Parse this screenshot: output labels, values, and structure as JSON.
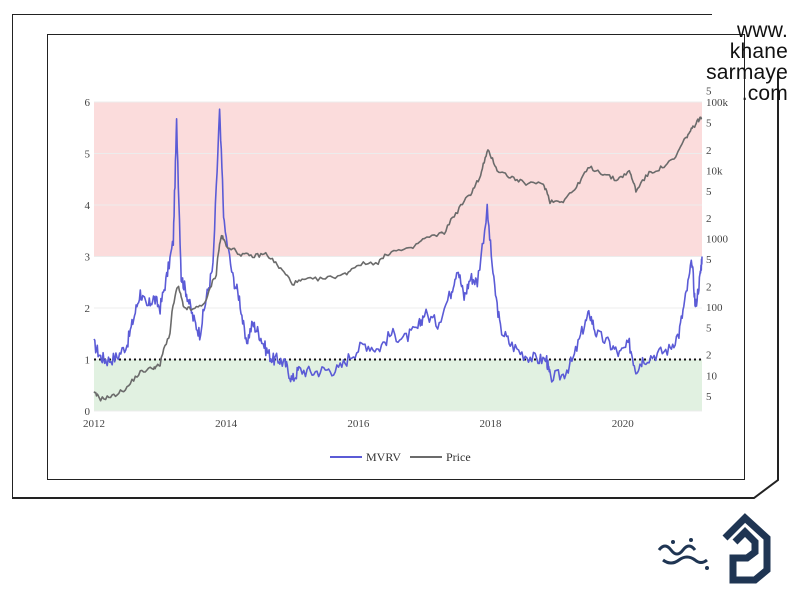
{
  "watermark": {
    "lines": [
      "www.",
      "khane",
      "sarmaye",
      ".com"
    ]
  },
  "colors": {
    "mvrv": "#5b5bd6",
    "price": "#6b6b6b",
    "red_band": "#fbdcdc",
    "green_band": "#e1f1e1",
    "frame": "#222222"
  },
  "chart_data": {
    "type": "line",
    "xlabel": "",
    "ylabel": "",
    "x_ticks": [
      "2012",
      "2014",
      "2016",
      "2018",
      "2020"
    ],
    "y_left_ticks": [
      "0",
      "1",
      "2",
      "3",
      "4",
      "5",
      "6"
    ],
    "y_right_ticks": [
      "5",
      "10",
      "2",
      "5",
      "100",
      "2",
      "5",
      "1000",
      "2",
      "5",
      "10k",
      "2",
      "5",
      "100k",
      "5"
    ],
    "ylim_left": [
      0,
      6
    ],
    "ylim_right_log": [
      3,
      100000
    ],
    "right_axis_scale": "log",
    "bands": [
      {
        "from": 3,
        "to": 6,
        "color": "red"
      },
      {
        "from": 0,
        "to": 1,
        "color": "green"
      }
    ],
    "reference_line": {
      "y": 1,
      "style": "dotted"
    },
    "legend_position": "bottom-center",
    "series": [
      {
        "name": "MVRV",
        "axis": "left",
        "points": [
          [
            2012.0,
            1.3
          ],
          [
            2012.1,
            1.05
          ],
          [
            2012.2,
            0.98
          ],
          [
            2012.35,
            1.05
          ],
          [
            2012.5,
            1.3
          ],
          [
            2012.6,
            1.8
          ],
          [
            2012.7,
            2.3
          ],
          [
            2012.8,
            2.0
          ],
          [
            2012.9,
            2.2
          ],
          [
            2013.0,
            2.0
          ],
          [
            2013.1,
            2.6
          ],
          [
            2013.2,
            3.3
          ],
          [
            2013.25,
            5.6
          ],
          [
            2013.32,
            2.6
          ],
          [
            2013.4,
            2.3
          ],
          [
            2013.5,
            1.8
          ],
          [
            2013.6,
            1.5
          ],
          [
            2013.7,
            2.2
          ],
          [
            2013.8,
            2.8
          ],
          [
            2013.9,
            5.8
          ],
          [
            2013.97,
            3.6
          ],
          [
            2014.1,
            2.6
          ],
          [
            2014.2,
            2.2
          ],
          [
            2014.3,
            1.3
          ],
          [
            2014.4,
            1.7
          ],
          [
            2014.5,
            1.5
          ],
          [
            2014.6,
            1.2
          ],
          [
            2014.7,
            1.0
          ],
          [
            2014.8,
            1.0
          ],
          [
            2014.9,
            0.9
          ],
          [
            2015.0,
            0.6
          ],
          [
            2015.1,
            0.8
          ],
          [
            2015.3,
            0.75
          ],
          [
            2015.5,
            0.8
          ],
          [
            2015.7,
            0.8
          ],
          [
            2015.9,
            1.1
          ],
          [
            2016.1,
            1.3
          ],
          [
            2016.3,
            1.2
          ],
          [
            2016.5,
            1.5
          ],
          [
            2016.7,
            1.4
          ],
          [
            2016.9,
            1.6
          ],
          [
            2017.0,
            1.9
          ],
          [
            2017.2,
            1.7
          ],
          [
            2017.4,
            2.3
          ],
          [
            2017.5,
            2.8
          ],
          [
            2017.6,
            2.2
          ],
          [
            2017.7,
            2.6
          ],
          [
            2017.8,
            2.5
          ],
          [
            2017.95,
            3.9
          ],
          [
            2018.05,
            2.5
          ],
          [
            2018.15,
            1.6
          ],
          [
            2018.3,
            1.3
          ],
          [
            2018.5,
            1.1
          ],
          [
            2018.7,
            1.0
          ],
          [
            2018.85,
            1.0
          ],
          [
            2018.9,
            0.65
          ],
          [
            2019.1,
            0.7
          ],
          [
            2019.25,
            1.0
          ],
          [
            2019.4,
            1.6
          ],
          [
            2019.5,
            1.9
          ],
          [
            2019.6,
            1.5
          ],
          [
            2019.8,
            1.3
          ],
          [
            2019.95,
            1.1
          ],
          [
            2020.1,
            1.3
          ],
          [
            2020.2,
            0.8
          ],
          [
            2020.3,
            1.0
          ],
          [
            2020.5,
            1.1
          ],
          [
            2020.7,
            1.2
          ],
          [
            2020.85,
            1.5
          ],
          [
            2020.95,
            2.2
          ],
          [
            2021.05,
            2.9
          ],
          [
            2021.1,
            2.0
          ],
          [
            2021.17,
            2.6
          ],
          [
            2021.2,
            3.0
          ]
        ]
      },
      {
        "name": "Price",
        "axis": "right",
        "points": [
          [
            2012.0,
            5.5
          ],
          [
            2012.1,
            4.5
          ],
          [
            2012.3,
            5.0
          ],
          [
            2012.5,
            6.5
          ],
          [
            2012.7,
            11
          ],
          [
            2012.9,
            13
          ],
          [
            2013.0,
            14
          ],
          [
            2013.15,
            40
          ],
          [
            2013.27,
            200
          ],
          [
            2013.35,
            100
          ],
          [
            2013.5,
            90
          ],
          [
            2013.7,
            120
          ],
          [
            2013.85,
            300
          ],
          [
            2013.93,
            1100
          ],
          [
            2014.0,
            800
          ],
          [
            2014.2,
            600
          ],
          [
            2014.4,
            550
          ],
          [
            2014.6,
            600
          ],
          [
            2014.8,
            380
          ],
          [
            2015.0,
            220
          ],
          [
            2015.2,
            250
          ],
          [
            2015.5,
            260
          ],
          [
            2015.8,
            300
          ],
          [
            2016.0,
            420
          ],
          [
            2016.3,
            450
          ],
          [
            2016.5,
            650
          ],
          [
            2016.8,
            700
          ],
          [
            2017.0,
            1000
          ],
          [
            2017.3,
            1200
          ],
          [
            2017.5,
            2500
          ],
          [
            2017.7,
            4500
          ],
          [
            2017.85,
            8000
          ],
          [
            2017.96,
            19000
          ],
          [
            2018.1,
            10000
          ],
          [
            2018.3,
            8000
          ],
          [
            2018.5,
            6500
          ],
          [
            2018.8,
            6300
          ],
          [
            2018.9,
            3500
          ],
          [
            2019.1,
            3600
          ],
          [
            2019.3,
            5500
          ],
          [
            2019.5,
            11000
          ],
          [
            2019.7,
            9000
          ],
          [
            2019.9,
            7200
          ],
          [
            2020.1,
            9500
          ],
          [
            2020.2,
            5000
          ],
          [
            2020.4,
            9000
          ],
          [
            2020.6,
            11000
          ],
          [
            2020.8,
            15000
          ],
          [
            2020.95,
            29000
          ],
          [
            2021.05,
            40000
          ],
          [
            2021.15,
            55000
          ],
          [
            2021.2,
            58000
          ]
        ]
      }
    ]
  }
}
